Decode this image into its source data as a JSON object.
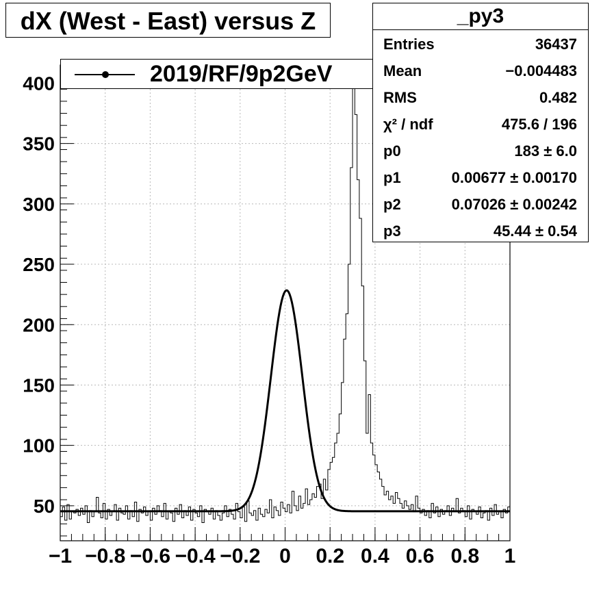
{
  "title": "dX (West - East) versus Z",
  "legend": {
    "label": "2019/RF/9p2GeV"
  },
  "stats": {
    "name": "_py3",
    "rows": [
      {
        "key": "Entries",
        "value": "36437"
      },
      {
        "key": "Mean",
        "value": "−0.004483"
      },
      {
        "key": "RMS",
        "value": "0.482"
      },
      {
        "key": "χ² / ndf",
        "value": "475.6 / 196"
      },
      {
        "key": "p0",
        "value": "183 ± 6.0"
      },
      {
        "key": "p1",
        "value": "0.00677 ± 0.00170"
      },
      {
        "key": "p2",
        "value": "0.07026 ± 0.00242"
      },
      {
        "key": "p3",
        "value": "45.44 ± 0.54"
      }
    ]
  },
  "chart_data": {
    "type": "histogram",
    "xlim": [
      -1,
      1
    ],
    "ylim": [
      21,
      415
    ],
    "xticks": [
      -1,
      -0.8,
      -0.6,
      -0.4,
      -0.2,
      0,
      0.2,
      0.4,
      0.6,
      0.8,
      1
    ],
    "xtick_labels": [
      "−1",
      "−0.8",
      "−0.6",
      "−0.4",
      "−0.2",
      "0",
      "0.2",
      "0.4",
      "0.6",
      "0.8",
      "1"
    ],
    "yticks": [
      50,
      100,
      150,
      200,
      250,
      300,
      350,
      400
    ],
    "ytick_labels": [
      "50",
      "100",
      "150",
      "200",
      "250",
      "300",
      "350",
      "400"
    ],
    "grid": true,
    "bin_edges_start": -1,
    "bin_width": 0.01,
    "bin_counts": [
      41,
      49,
      38,
      51,
      39,
      45,
      44,
      47,
      42,
      48,
      43,
      50,
      36,
      46,
      41,
      45,
      57,
      44,
      40,
      52,
      39,
      47,
      42,
      45,
      51,
      38,
      48,
      44,
      43,
      50,
      39,
      46,
      41,
      53,
      37,
      47,
      44,
      49,
      42,
      45,
      38,
      48,
      43,
      50,
      46,
      41,
      52,
      39,
      45,
      44,
      37,
      48,
      43,
      51,
      40,
      46,
      42,
      49,
      38,
      47,
      44,
      41,
      50,
      36,
      47,
      45,
      43,
      48,
      39,
      46,
      42,
      38,
      44,
      50,
      41,
      47,
      43,
      39,
      52,
      45,
      40,
      49,
      37,
      54,
      44,
      42,
      46,
      38,
      48,
      43,
      41,
      47,
      44,
      55,
      40,
      49,
      46,
      42,
      53,
      48,
      45,
      51,
      44,
      62,
      50,
      46,
      58,
      48,
      52,
      64,
      51,
      55,
      60,
      57,
      66,
      68,
      56,
      72,
      63,
      80,
      86,
      90,
      102,
      110,
      126,
      152,
      188,
      209,
      250,
      330,
      414,
      374,
      320,
      288,
      232,
      170,
      110,
      142,
      102,
      92,
      84,
      78,
      72,
      66,
      59,
      62,
      55,
      58,
      52,
      61,
      56,
      52,
      48,
      54,
      50,
      47,
      51,
      45,
      58,
      48,
      44,
      47,
      42,
      46,
      40,
      52,
      44,
      49,
      41,
      47,
      43,
      46,
      50,
      42,
      48,
      45,
      56,
      44,
      48,
      46,
      41,
      50,
      39,
      47,
      45,
      43,
      49,
      40,
      44,
      46,
      38,
      48,
      42,
      51,
      43,
      45,
      40,
      47,
      44,
      49
    ],
    "fit": {
      "type": "gaussian_plus_constant",
      "p0": 183,
      "p1": 0.00677,
      "p2": 0.07026,
      "p3": 45.44
    }
  }
}
